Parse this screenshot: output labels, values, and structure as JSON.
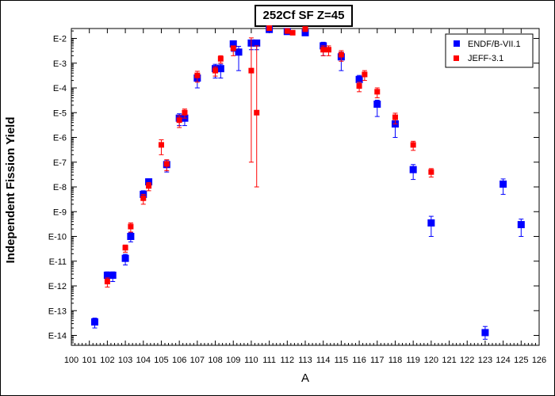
{
  "chart_data": {
    "type": "scatter",
    "title": "252Cf SF Z=45",
    "xlabel": "A",
    "ylabel": "Independent Fission Yield",
    "xlim": [
      100,
      126
    ],
    "ylim_log10": [
      -14.4,
      -1.6
    ],
    "y_scale": "log",
    "x_ticks": [
      "100",
      "101",
      "102",
      "103",
      "104",
      "105",
      "106",
      "107",
      "108",
      "109",
      "110",
      "111",
      "112",
      "113",
      "114",
      "115",
      "116",
      "117",
      "118",
      "119",
      "120",
      "121",
      "122",
      "123",
      "124",
      "125",
      "126"
    ],
    "y_ticks": [
      "E-2",
      "E-3",
      "E-4",
      "E-5",
      "E-6",
      "E-7",
      "E-8",
      "E-9",
      "E-10",
      "E-11",
      "E-12",
      "E-13",
      "E-14"
    ],
    "legend_position": "top-right",
    "series": [
      {
        "name": "ENDF/B-VII.1",
        "color": "#0000ff",
        "marker": "square",
        "points": [
          {
            "x": 101.3,
            "y": 3.5e-14,
            "err_lo": 1.5e-14,
            "err_hi": 1.5e-14
          },
          {
            "x": 102.0,
            "y": 2.7e-12,
            "err_lo": 1.2e-12,
            "err_hi": 1e-12
          },
          {
            "x": 102.3,
            "y": 2.7e-12,
            "err_lo": 1.2e-12,
            "err_hi": 1e-12
          },
          {
            "x": 103.0,
            "y": 1.3e-11,
            "err_lo": 6e-12,
            "err_hi": 6e-12
          },
          {
            "x": 103.3,
            "y": 1e-10,
            "err_lo": 4e-11,
            "err_hi": 4e-11
          },
          {
            "x": 104.0,
            "y": 5e-09,
            "err_lo": 2e-09,
            "err_hi": 2e-09
          },
          {
            "x": 104.3,
            "y": 1.6e-08,
            "err_lo": 5e-09,
            "err_hi": 5e-09
          },
          {
            "x": 105.3,
            "y": 8e-08,
            "err_lo": 4e-08,
            "err_hi": 4e-08
          },
          {
            "x": 106.0,
            "y": 6e-06,
            "err_lo": 3e-06,
            "err_hi": 3e-06
          },
          {
            "x": 106.3,
            "y": 6e-06,
            "err_lo": 3e-06,
            "err_hi": 3e-06
          },
          {
            "x": 107.0,
            "y": 0.00025,
            "err_lo": 0.00015,
            "err_hi": 0.0001
          },
          {
            "x": 108.0,
            "y": 0.0006,
            "err_lo": 0.00035,
            "err_hi": 0.0003
          },
          {
            "x": 108.3,
            "y": 0.0006,
            "err_lo": 0.00035,
            "err_hi": 0.0003
          },
          {
            "x": 109.0,
            "y": 0.006,
            "err_lo": 0.003,
            "err_hi": 0.001
          },
          {
            "x": 109.3,
            "y": 0.0028,
            "err_lo": 0.0023,
            "err_hi": 0.002
          },
          {
            "x": 110.0,
            "y": 0.0065,
            "err_lo": 0.003,
            "err_hi": 0.001
          },
          {
            "x": 110.3,
            "y": 0.0065,
            "err_lo": 0.003,
            "err_hi": 0.001
          },
          {
            "x": 111.0,
            "y": 0.023,
            "err_lo": 0.005,
            "err_hi": 0.005
          },
          {
            "x": 112.0,
            "y": 0.019,
            "err_lo": 0.004,
            "err_hi": 0.004
          },
          {
            "x": 113.0,
            "y": 0.017,
            "err_lo": 0.004,
            "err_hi": 0.004
          },
          {
            "x": 114.0,
            "y": 0.005,
            "err_lo": 0.003,
            "err_hi": 0.002
          },
          {
            "x": 115.0,
            "y": 0.0018,
            "err_lo": 0.0013,
            "err_hi": 0.001
          },
          {
            "x": 116.0,
            "y": 0.00022,
            "err_lo": 0.0001,
            "err_hi": 0.0001
          },
          {
            "x": 117.0,
            "y": 2.2e-05,
            "err_lo": 1.5e-05,
            "err_hi": 1e-05
          },
          {
            "x": 118.0,
            "y": 3.5e-06,
            "err_lo": 2.5e-06,
            "err_hi": 2e-06
          },
          {
            "x": 119.0,
            "y": 5e-08,
            "err_lo": 3e-08,
            "err_hi": 3e-08
          },
          {
            "x": 120.0,
            "y": 3.5e-10,
            "err_lo": 2.5e-10,
            "err_hi": 3e-10
          },
          {
            "x": 123.0,
            "y": 1.3e-14,
            "err_lo": 6e-15,
            "err_hi": 1e-14
          },
          {
            "x": 124.0,
            "y": 1.3e-08,
            "err_lo": 8e-09,
            "err_hi": 8e-09
          },
          {
            "x": 125.0,
            "y": 3e-10,
            "err_lo": 2e-10,
            "err_hi": 2e-10
          }
        ]
      },
      {
        "name": "JEFF-3.1",
        "color": "#ff0000",
        "marker": "square",
        "points": [
          {
            "x": 102.0,
            "y": 1.5e-12,
            "err_lo": 6e-13,
            "err_hi": 6e-13
          },
          {
            "x": 103.0,
            "y": 3.5e-11,
            "err_lo": 1.2e-11,
            "err_hi": 1e-11
          },
          {
            "x": 103.3,
            "y": 2.5e-10,
            "err_lo": 1e-10,
            "err_hi": 1e-10
          },
          {
            "x": 104.0,
            "y": 3.5e-09,
            "err_lo": 1.5e-09,
            "err_hi": 1.5e-09
          },
          {
            "x": 104.3,
            "y": 1.1e-08,
            "err_lo": 4e-09,
            "err_hi": 4e-09
          },
          {
            "x": 105.0,
            "y": 5e-07,
            "err_lo": 3e-07,
            "err_hi": 3e-07
          },
          {
            "x": 105.3,
            "y": 8.5e-08,
            "err_lo": 4e-08,
            "err_hi": 4e-08
          },
          {
            "x": 106.0,
            "y": 5e-06,
            "err_lo": 2.5e-06,
            "err_hi": 2.5e-06
          },
          {
            "x": 106.3,
            "y": 1e-05,
            "err_lo": 4e-06,
            "err_hi": 4e-06
          },
          {
            "x": 107.0,
            "y": 0.00032,
            "err_lo": 0.00015,
            "err_hi": 0.00015
          },
          {
            "x": 108.0,
            "y": 0.0005,
            "err_lo": 0.0002,
            "err_hi": 0.0002
          },
          {
            "x": 108.3,
            "y": 0.0015,
            "err_lo": 0.0005,
            "err_hi": 0.0005
          },
          {
            "x": 109.0,
            "y": 0.004,
            "err_lo": 0.002,
            "err_hi": 0.001
          },
          {
            "x": 110.0,
            "y": 0.0005,
            "err_lo": 0.0004999,
            "err_hi": 0.01
          },
          {
            "x": 110.3,
            "y": 1e-05,
            "err_lo": 9.99e-06,
            "err_hi": 0.005
          },
          {
            "x": 111.0,
            "y": 0.026,
            "err_lo": 0.005,
            "err_hi": 0.005
          },
          {
            "x": 112.0,
            "y": 0.02,
            "err_lo": 0.004,
            "err_hi": 0.004
          },
          {
            "x": 112.3,
            "y": 0.017,
            "err_lo": 0.003,
            "err_hi": 0.003
          },
          {
            "x": 113.0,
            "y": 0.024,
            "err_lo": 0.005,
            "err_hi": 0.005
          },
          {
            "x": 114.0,
            "y": 0.0035,
            "err_lo": 0.0015,
            "err_hi": 0.0015
          },
          {
            "x": 114.3,
            "y": 0.0035,
            "err_lo": 0.0015,
            "err_hi": 0.0015
          },
          {
            "x": 115.0,
            "y": 0.0022,
            "err_lo": 0.001,
            "err_hi": 0.001
          },
          {
            "x": 116.0,
            "y": 0.00012,
            "err_lo": 5e-05,
            "err_hi": 5e-05
          },
          {
            "x": 116.3,
            "y": 0.00035,
            "err_lo": 0.00015,
            "err_hi": 0.00015
          },
          {
            "x": 117.0,
            "y": 7e-05,
            "err_lo": 3e-05,
            "err_hi": 3e-05
          },
          {
            "x": 118.0,
            "y": 6.5e-06,
            "err_lo": 3e-06,
            "err_hi": 3e-06
          },
          {
            "x": 119.0,
            "y": 5e-07,
            "err_lo": 2e-07,
            "err_hi": 2e-07
          },
          {
            "x": 120.0,
            "y": 4e-08,
            "err_lo": 1.5e-08,
            "err_hi": 1.5e-08
          }
        ]
      }
    ]
  }
}
